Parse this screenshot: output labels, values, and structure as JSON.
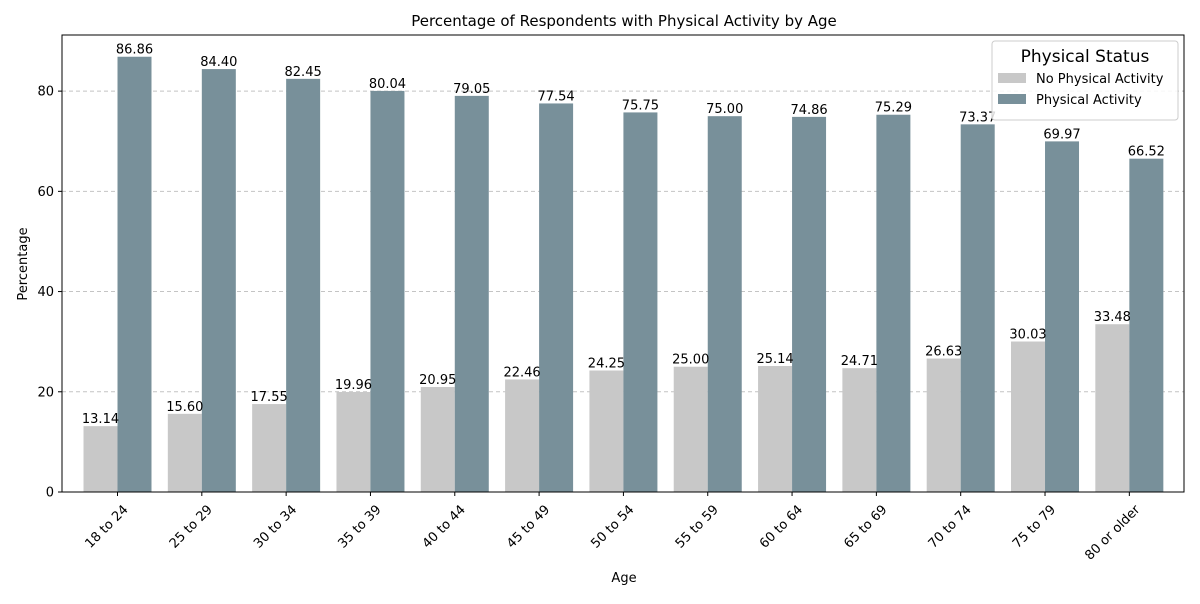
{
  "chart_data": {
    "type": "bar",
    "title": "Percentage of Respondents with Physical Activity by Age",
    "xlabel": "Age",
    "ylabel": "Percentage",
    "ylim": [
      0,
      91.2
    ],
    "yticks": [
      0,
      20,
      40,
      60,
      80
    ],
    "grid": "y-dashed",
    "legend_title": "Physical Status",
    "legend_position": "top-right",
    "categories": [
      "18 to 24",
      "25 to 29",
      "30 to 34",
      "35 to 39",
      "40 to 44",
      "45 to 49",
      "50 to 54",
      "55 to 59",
      "60 to 64",
      "65 to 69",
      "70 to 74",
      "75 to 79",
      "80 or older"
    ],
    "series": [
      {
        "name": "No Physical Activity",
        "color": "#c8c8c8",
        "values": [
          13.14,
          15.6,
          17.55,
          19.96,
          20.95,
          22.46,
          24.25,
          25.0,
          25.14,
          24.71,
          26.63,
          30.03,
          33.48
        ]
      },
      {
        "name": "Physical Activity",
        "color": "#78909a",
        "values": [
          86.86,
          84.4,
          82.45,
          80.04,
          79.05,
          77.54,
          75.75,
          75.0,
          74.86,
          75.29,
          73.37,
          69.97,
          66.52
        ]
      }
    ]
  }
}
